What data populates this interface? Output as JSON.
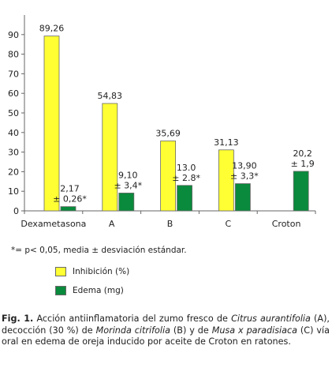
{
  "chart_data": {
    "type": "bar",
    "categories": [
      "Dexametasona",
      "A",
      "B",
      "C",
      "Croton"
    ],
    "series": [
      {
        "name": "Inhibición (%)",
        "color": "#ffff33",
        "values": [
          89.26,
          54.83,
          35.69,
          31.13,
          null
        ],
        "labels": [
          [
            "89,26"
          ],
          [
            "54,83"
          ],
          [
            "35,69"
          ],
          [
            "31,13"
          ],
          []
        ]
      },
      {
        "name": "Edema (mg)",
        "color": "#0a8a3c",
        "values": [
          2.17,
          9.1,
          13.0,
          13.9,
          20.2
        ],
        "labels": [
          [
            "2,17",
            "± 0,26*"
          ],
          [
            "9,10",
            "± 3,4*"
          ],
          [
            "13.0",
            "± 2.8*"
          ],
          [
            "13,90",
            "± 3,3*"
          ],
          [
            "20,2",
            "± 1,9"
          ]
        ]
      }
    ],
    "ylim": [
      0,
      100
    ],
    "yticks": [
      0,
      10,
      20,
      30,
      40,
      50,
      60,
      70,
      80,
      90
    ],
    "legend_position": "below"
  },
  "footnote": "*= p< 0,05, media ± desviación estándar.",
  "legend": [
    {
      "label": "Inhibición (%)",
      "color": "#ffff33"
    },
    {
      "label": "Edema (mg)",
      "color": "#0a8a3c"
    }
  ],
  "caption": {
    "fig_label": "Fig. 1.",
    "text_1": " Acción antiinflamatoria del zumo fresco de ",
    "species_1": "Citrus aurantifolia",
    "text_2": " (A), decocción (30 %) de ",
    "species_2": "Morinda citrifolia",
    "text_3": " (B) y de ",
    "species_3": "Musa x paradisiaca",
    "text_4": " (C) vía oral en edema de oreja inducido por aceite de Croton en ratones."
  }
}
